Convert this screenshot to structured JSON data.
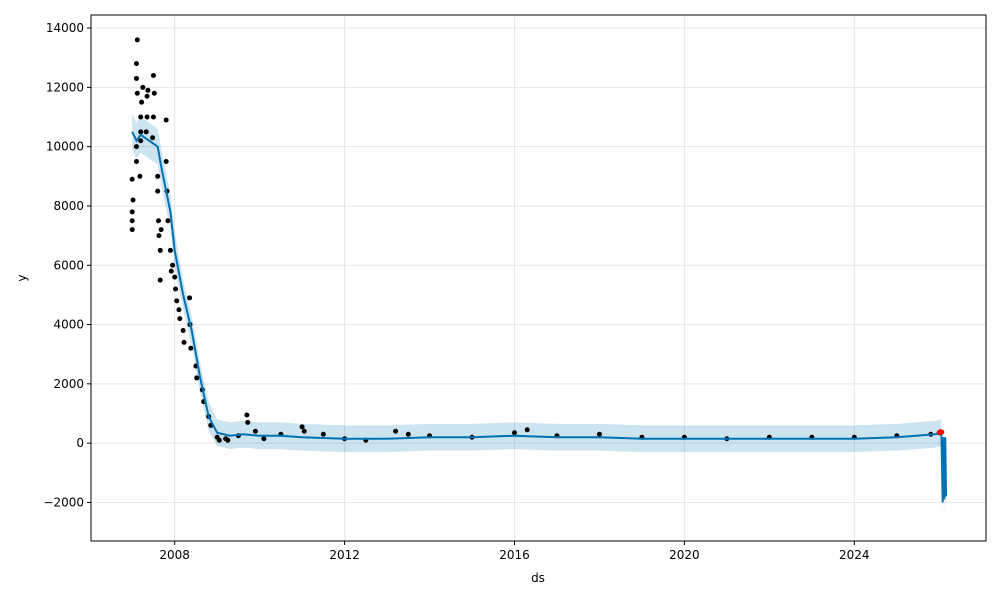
{
  "chart_data": {
    "type": "forecast",
    "xlabel": "ds",
    "ylabel": "y",
    "xlim": [
      2006.03,
      2027.1
    ],
    "ylim": [
      -3300,
      14440
    ],
    "xticks": [
      2008,
      2012,
      2016,
      2020,
      2024
    ],
    "yticks": [
      {
        "value": -2000,
        "label": "−2000"
      },
      0,
      2000,
      4000,
      6000,
      8000,
      10000,
      12000,
      14000
    ],
    "grid": true,
    "observed": {
      "color": "#000000",
      "x": [
        2007.0,
        2007.0,
        2007.0,
        2007.02,
        2007.0,
        2007.1,
        2007.1,
        2007.1,
        2007.12,
        2007.1,
        2007.12,
        2007.2,
        2007.2,
        2007.22,
        2007.25,
        2007.2,
        2007.18,
        2007.35,
        2007.35,
        2007.37,
        2007.33,
        2007.5,
        2007.5,
        2007.48,
        2007.52,
        2007.6,
        2007.6,
        2007.62,
        2007.63,
        2007.66,
        2007.66,
        2007.68,
        2007.8,
        2007.8,
        2007.82,
        2007.84,
        2007.9,
        2007.92,
        2007.95,
        2008.0,
        2008.02,
        2008.05,
        2008.1,
        2008.12,
        2008.2,
        2008.22,
        2008.35,
        2008.36,
        2008.38,
        2008.5,
        2008.52,
        2008.65,
        2008.68,
        2008.8,
        2008.85,
        2009.0,
        2009.05,
        2009.2,
        2009.25,
        2009.5,
        2009.7,
        2009.72,
        2009.9,
        2010.1,
        2010.5,
        2011.0,
        2011.05,
        2011.5,
        2012.0,
        2012.5,
        2013.2,
        2013.5,
        2014.0,
        2015.0,
        2016.0,
        2016.3,
        2017.0,
        2018.0,
        2019.0,
        2020.0,
        2021.0,
        2022.0,
        2023.0,
        2024.0,
        2025.0,
        2025.8,
        2026.0
      ],
      "values": [
        7200,
        7500,
        7800,
        8200,
        8900,
        9500,
        10000,
        12800,
        13600,
        12300,
        11800,
        10500,
        11000,
        11500,
        12000,
        10200,
        9000,
        11000,
        11700,
        11900,
        10500,
        12400,
        11000,
        10300,
        11800,
        9000,
        8500,
        7500,
        7000,
        6500,
        5500,
        7200,
        10900,
        9500,
        8500,
        7500,
        6500,
        5800,
        6000,
        5600,
        5200,
        4800,
        4500,
        4200,
        3800,
        3400,
        4900,
        4000,
        3200,
        2600,
        2200,
        1800,
        1400,
        900,
        600,
        200,
        100,
        150,
        100,
        250,
        950,
        700,
        400,
        150,
        300,
        550,
        400,
        300,
        150,
        100,
        400,
        300,
        250,
        200,
        350,
        450,
        250,
        300,
        200,
        200,
        150,
        200,
        200,
        200,
        250,
        300,
        350
      ]
    },
    "forecast": {
      "color": "#0072B2",
      "x": [
        2007.0,
        2007.1,
        2007.2,
        2007.4,
        2007.6,
        2007.7,
        2007.9,
        2008.0,
        2008.2,
        2008.4,
        2008.6,
        2008.8,
        2009.0,
        2009.3,
        2009.6,
        2010.0,
        2010.5,
        2011.0,
        2012.0,
        2013.0,
        2014.0,
        2015.0,
        2016.0,
        2017.0,
        2018.0,
        2019.0,
        2020.0,
        2021.0,
        2022.0,
        2023.0,
        2024.0,
        2025.0,
        2025.9,
        2026.05,
        2026.08,
        2026.1,
        2026.12,
        2026.14,
        2026.16
      ],
      "values": [
        10500,
        10200,
        10400,
        10200,
        10000,
        9200,
        7800,
        6500,
        5000,
        3800,
        2200,
        900,
        350,
        250,
        300,
        250,
        250,
        200,
        150,
        150,
        200,
        200,
        250,
        200,
        200,
        150,
        150,
        150,
        150,
        150,
        150,
        200,
        300,
        350,
        -2000,
        200,
        -1900,
        200,
        -1800
      ],
      "lower": [
        9900,
        9600,
        9800,
        9600,
        9400,
        8600,
        7200,
        5900,
        4500,
        3300,
        1700,
        400,
        -100,
        -200,
        -150,
        -200,
        -200,
        -250,
        -300,
        -300,
        -250,
        -250,
        -200,
        -250,
        -250,
        -300,
        -300,
        -300,
        -300,
        -300,
        -300,
        -250,
        -150,
        -100,
        -2450,
        -250,
        -2350,
        -250,
        -2250
      ],
      "upper": [
        11100,
        10800,
        11000,
        10800,
        10600,
        9800,
        8400,
        7100,
        5500,
        4300,
        2700,
        1400,
        800,
        700,
        750,
        700,
        700,
        650,
        600,
        600,
        650,
        650,
        700,
        650,
        650,
        600,
        600,
        600,
        600,
        600,
        600,
        650,
        750,
        800,
        -1550,
        650,
        -1450,
        650,
        -1350
      ]
    },
    "recent": {
      "color": "#ff0000",
      "x": [
        2026.0,
        2026.03,
        2026.06
      ],
      "values": [
        360,
        390,
        370
      ]
    }
  }
}
